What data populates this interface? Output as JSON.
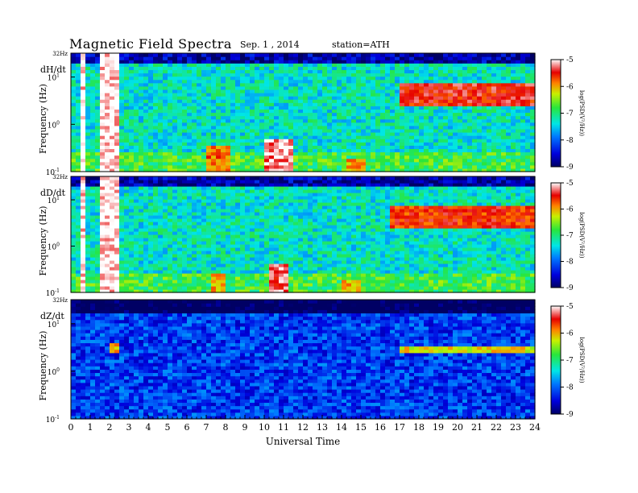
{
  "header": {
    "title": "Magnetic  Field  Spectra",
    "date": "Sep. 1  , 2014",
    "station": "station=ATH"
  },
  "chart_data": {
    "type": "heatmap",
    "x_axis": {
      "label": "Universal Time",
      "range": [
        0,
        24
      ],
      "ticks": [
        "0",
        "1",
        "2",
        "3",
        "4",
        "5",
        "6",
        "7",
        "8",
        "9",
        "10",
        "11",
        "12",
        "13",
        "14",
        "15",
        "16",
        "17",
        "18",
        "19",
        "20",
        "21",
        "22",
        "23",
        "24"
      ]
    },
    "y_axis": {
      "label": "Frequency  (Hz)",
      "scale": "log",
      "range": [
        0.1,
        32
      ],
      "tick_labels": [
        {
          "value": 0.1,
          "base": "10",
          "exp": "-1"
        },
        {
          "value": 1,
          "base": "10",
          "exp": "0"
        },
        {
          "value": 10,
          "base": "10",
          "exp": "1"
        },
        {
          "value": 32,
          "text": "32Hz"
        }
      ]
    },
    "colorbar": {
      "label": "log(PSD(V²/Hz))",
      "range": [
        -9,
        -5
      ],
      "ticks": [
        "-5",
        "-6",
        "-7",
        "-8",
        "-9"
      ]
    },
    "panels": [
      {
        "component": "dH/dt",
        "background_level": -7.3,
        "features": [
          {
            "t_start": 0.4,
            "t_end": 0.8,
            "f_low": 0.1,
            "f_high": 32,
            "level": -5
          },
          {
            "t_start": 1.4,
            "t_end": 2.6,
            "f_low": 0.1,
            "f_high": 32,
            "level": -5
          },
          {
            "t_start": 7.0,
            "t_end": 8.2,
            "f_low": 0.1,
            "f_high": 0.35,
            "level": -5.8
          },
          {
            "t_start": 10.0,
            "t_end": 11.4,
            "f_low": 0.1,
            "f_high": 0.5,
            "level": -5.2
          },
          {
            "t_start": 14.2,
            "t_end": 15.2,
            "f_low": 0.1,
            "f_high": 0.2,
            "level": -6
          },
          {
            "t_start": 17.0,
            "t_end": 24.0,
            "f_low": 2.5,
            "f_high": 7,
            "level": -5.5
          }
        ]
      },
      {
        "component": "dD/dt",
        "background_level": -7.3,
        "features": [
          {
            "t_start": 0.4,
            "t_end": 0.8,
            "f_low": 0.1,
            "f_high": 32,
            "level": -5
          },
          {
            "t_start": 1.6,
            "t_end": 2.5,
            "f_low": 0.1,
            "f_high": 32,
            "level": -5
          },
          {
            "t_start": 7.2,
            "t_end": 7.9,
            "f_low": 0.1,
            "f_high": 0.25,
            "level": -6
          },
          {
            "t_start": 10.3,
            "t_end": 11.3,
            "f_low": 0.1,
            "f_high": 0.45,
            "level": -5.3
          },
          {
            "t_start": 14.0,
            "t_end": 15.0,
            "f_low": 0.1,
            "f_high": 0.2,
            "level": -6
          },
          {
            "t_start": 16.5,
            "t_end": 24.0,
            "f_low": 2.5,
            "f_high": 7,
            "level": -5.6
          }
        ]
      },
      {
        "component": "dZ/dt",
        "background_level": -8.2,
        "features": [
          {
            "t_start": 1.9,
            "t_end": 2.4,
            "f_low": 2.5,
            "f_high": 4,
            "level": -6
          },
          {
            "t_start": 17.0,
            "t_end": 24.0,
            "f_low": 2.6,
            "f_high": 3.4,
            "level": -6.2
          }
        ]
      }
    ],
    "grid": false
  }
}
